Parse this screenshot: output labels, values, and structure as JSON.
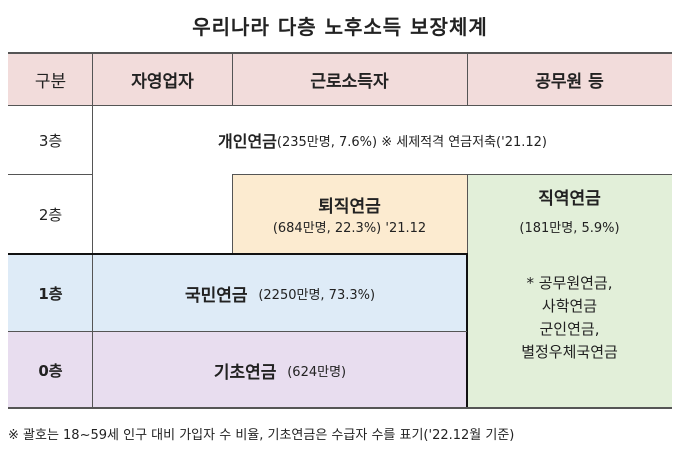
{
  "title": "우리나라 다층 노후소득 보장체계",
  "header": {
    "col0": "구분",
    "col1": "자영업자",
    "col2": "근로소득자",
    "col3": "공무원 등"
  },
  "rows": {
    "r3": {
      "label": "3층",
      "name": "개인연금",
      "detail": "(235만명, 7.6%) ※ 세제적격 연금저축('21.12)"
    },
    "r2": {
      "label": "2층",
      "retire_name": "퇴직연금",
      "retire_detail": "(684만명, 22.3%) '21.12",
      "occ_name": "직역연금",
      "occ_detail": "(181만명, 5.9%)"
    },
    "r1": {
      "label": "1층",
      "name": "국민연금",
      "detail": "(2250만명, 73.3%)"
    },
    "r0": {
      "label": "0층",
      "name": "기초연금",
      "detail": "(624만명)"
    }
  },
  "occ_note": [
    "* 공무원연금,",
    "사학연금",
    "군인연금,",
    "별정우체국연금"
  ],
  "footnote": "※ 괄호는 18~59세 인구 대비 가입자 수 비율, 기초연금은 수급자 수를 표기('22.12월 기준)",
  "colors": {
    "header": "#f2dcdb",
    "retire": "#fcebd0",
    "occupational": "#e2efd9",
    "national": "#deebf7",
    "basic": "#e8ddef"
  }
}
